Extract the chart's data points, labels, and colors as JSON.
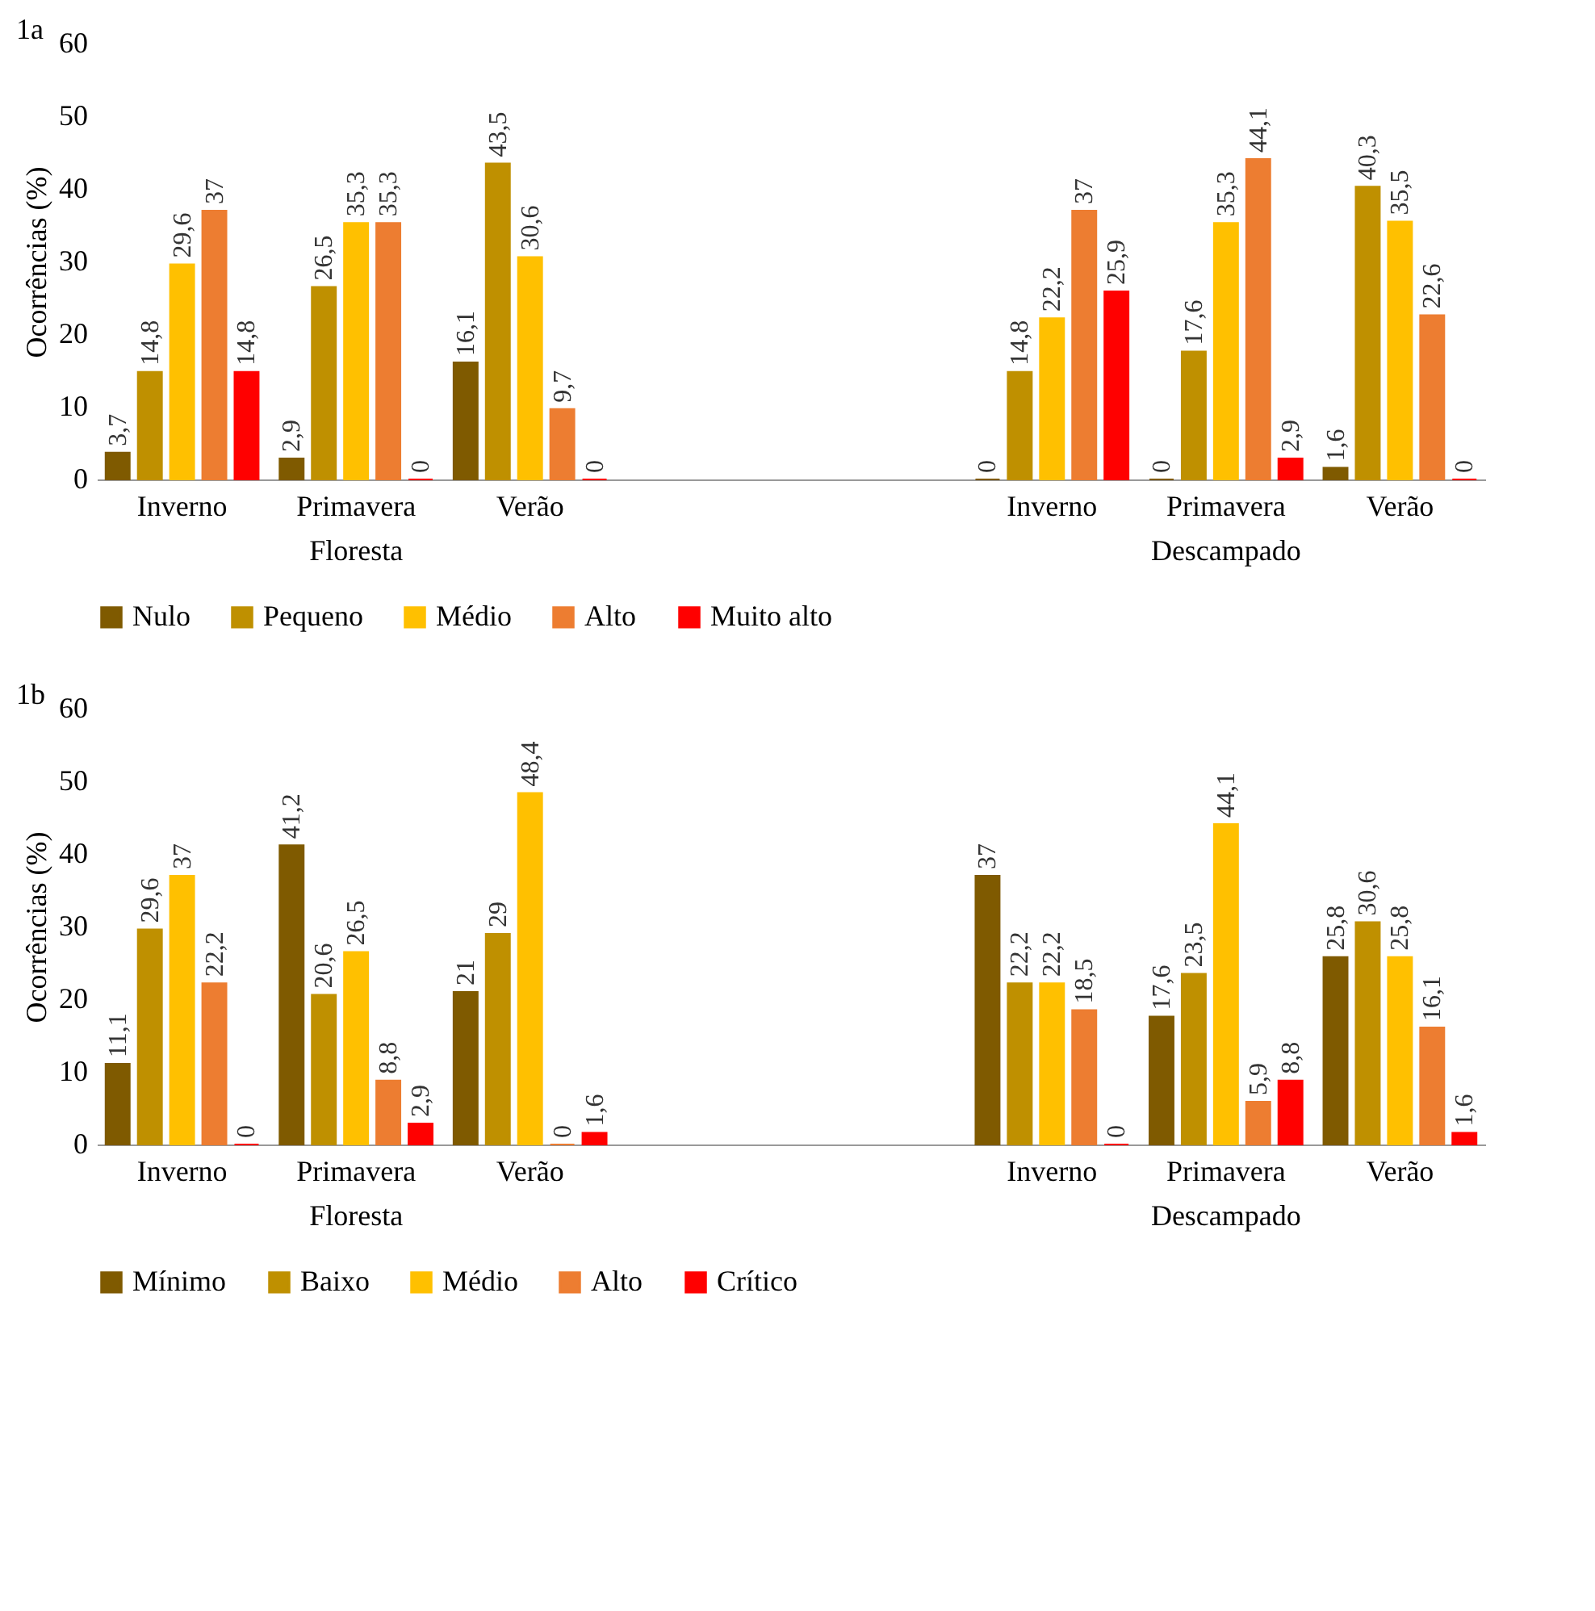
{
  "chart_data": [
    {
      "type": "bar",
      "title": "1a",
      "ylabel": "Ocorrências (%)",
      "categories": [
        "Inverno",
        "Primavera",
        "Verão",
        null,
        null,
        "Inverno",
        "Primavera",
        "Verão"
      ],
      "ylim": [
        0,
        60
      ],
      "yticks": [
        0,
        10,
        20,
        30,
        40,
        50,
        60
      ],
      "legend": "bottom",
      "annotations": [
        "Floresta",
        "Descampado"
      ],
      "series": [
        {
          "name": "Nulo",
          "color": "#7f5a00",
          "values": [
            3.7,
            2.9,
            16.1,
            null,
            null,
            0,
            0,
            1.6
          ],
          "value_labels": [
            "3,7",
            "2,9",
            "16,1",
            null,
            null,
            "0",
            "0",
            "1,6"
          ]
        },
        {
          "name": "Pequeno",
          "color": "#bf9000",
          "values": [
            14.8,
            26.5,
            43.5,
            null,
            null,
            14.8,
            17.6,
            40.3
          ],
          "value_labels": [
            "14,8",
            "26,5",
            "43,5",
            null,
            null,
            "14,8",
            "17,6",
            "40,3"
          ]
        },
        {
          "name": "Médio",
          "color": "#ffc000",
          "values": [
            29.6,
            35.3,
            30.6,
            null,
            null,
            22.2,
            35.3,
            35.5
          ],
          "value_labels": [
            "29,6",
            "35,3",
            "30,6",
            null,
            null,
            "22,2",
            "35,3",
            "35,5"
          ]
        },
        {
          "name": "Alto",
          "color": "#ed7d31",
          "values": [
            37,
            35.3,
            9.7,
            null,
            null,
            37,
            44.1,
            22.6
          ],
          "value_labels": [
            "37",
            "35,3",
            "9,7",
            null,
            null,
            "37",
            "44,1",
            "22,6"
          ]
        },
        {
          "name": "Muito alto",
          "color": "#ff0000",
          "values": [
            14.8,
            0,
            0,
            null,
            null,
            25.9,
            2.9,
            0
          ],
          "value_labels": [
            "14,8",
            "0",
            "0",
            null,
            null,
            "25,9",
            "2,9",
            "0"
          ]
        }
      ]
    },
    {
      "type": "bar",
      "title": "1b",
      "ylabel": "Ocorrências (%)",
      "categories": [
        "Inverno",
        "Primavera",
        "Verão",
        null,
        null,
        "Inverno",
        "Primavera",
        "Verão"
      ],
      "ylim": [
        0,
        60
      ],
      "yticks": [
        0,
        10,
        20,
        30,
        40,
        50,
        60
      ],
      "legend": "bottom",
      "annotations": [
        "Floresta",
        "Descampado"
      ],
      "series": [
        {
          "name": "Mínimo",
          "color": "#7f5a00",
          "values": [
            11.1,
            41.2,
            21,
            null,
            null,
            37,
            17.6,
            25.8
          ],
          "value_labels": [
            "11,1",
            "41,2",
            "21",
            null,
            null,
            "37",
            "17,6",
            "25,8"
          ]
        },
        {
          "name": "Baixo",
          "color": "#bf9000",
          "values": [
            29.6,
            20.6,
            29,
            null,
            null,
            22.2,
            23.5,
            30.6
          ],
          "value_labels": [
            "29,6",
            "20,6",
            "29",
            null,
            null,
            "22,2",
            "23,5",
            "30,6"
          ]
        },
        {
          "name": "Médio",
          "color": "#ffc000",
          "values": [
            37,
            26.5,
            48.4,
            null,
            null,
            22.2,
            44.1,
            25.8
          ],
          "value_labels": [
            "37",
            "26,5",
            "48,4",
            null,
            null,
            "22,2",
            "44,1",
            "25,8"
          ]
        },
        {
          "name": "Alto",
          "color": "#ed7d31",
          "values": [
            22.2,
            8.8,
            0,
            null,
            null,
            18.5,
            5.9,
            16.1
          ],
          "value_labels": [
            "22,2",
            "8,8",
            "0",
            null,
            null,
            "18,5",
            "5,9",
            "16,1"
          ]
        },
        {
          "name": "Crítico",
          "color": "#ff0000",
          "values": [
            0,
            2.9,
            1.6,
            null,
            null,
            0,
            8.8,
            1.6
          ],
          "value_labels": [
            "0",
            "2,9",
            "1,6",
            null,
            null,
            "0",
            "8,8",
            "1,6"
          ]
        }
      ]
    }
  ]
}
